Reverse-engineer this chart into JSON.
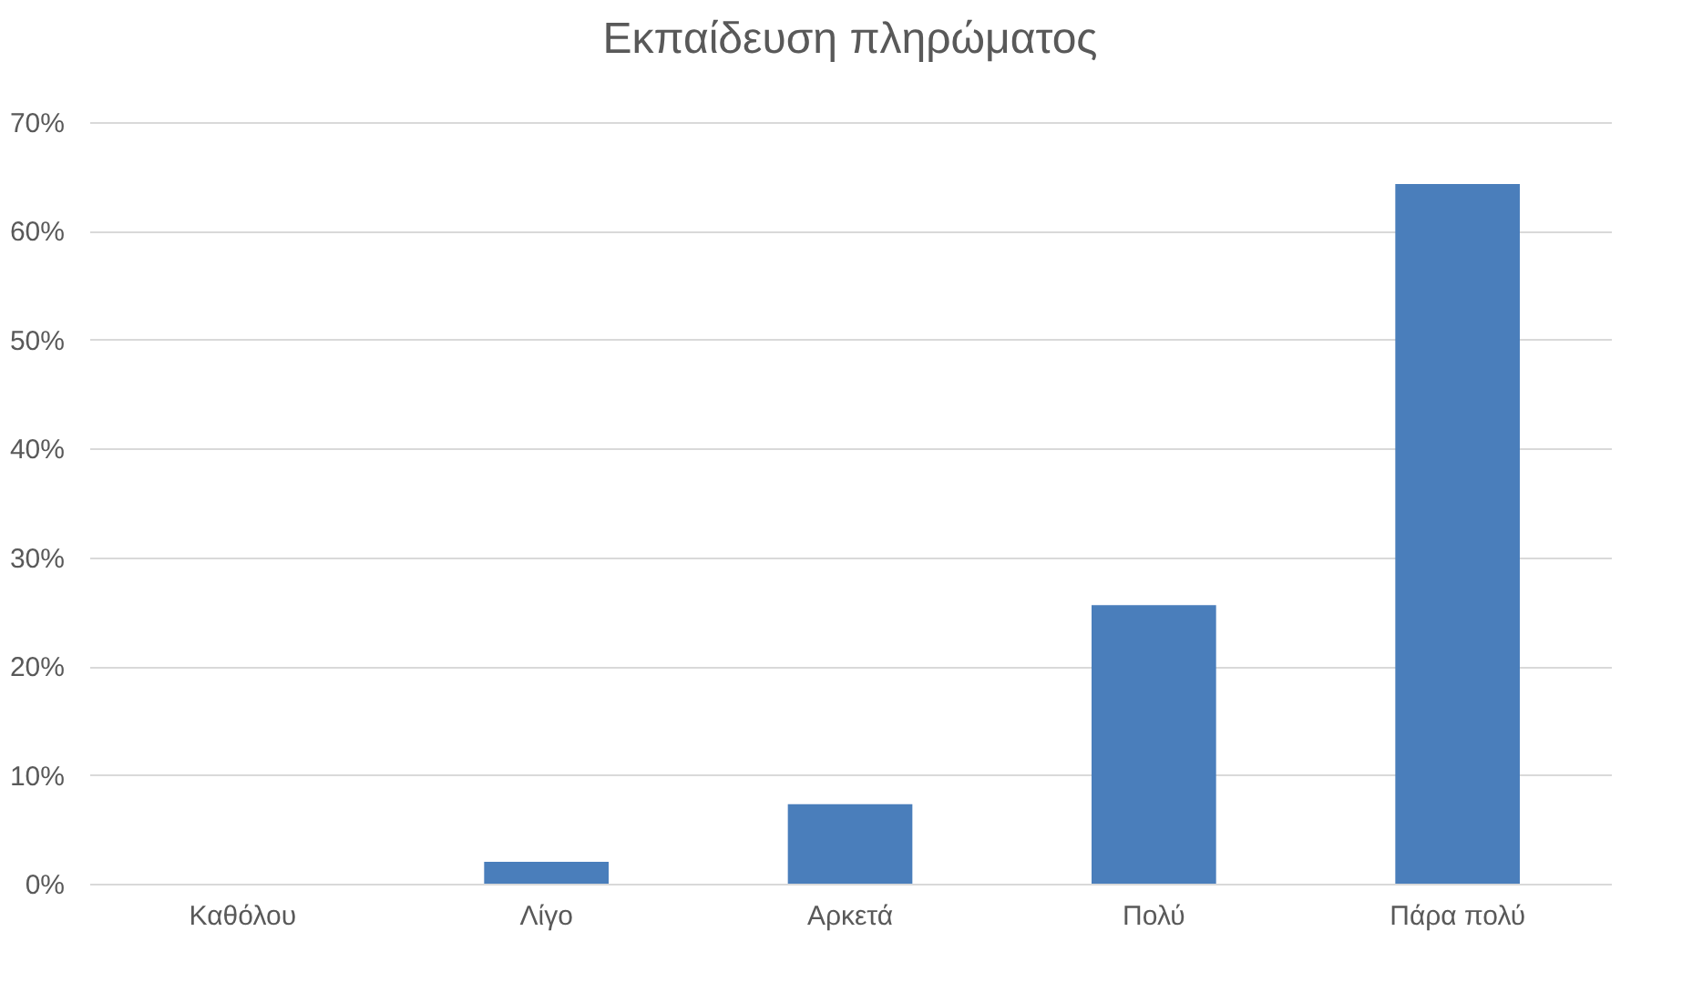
{
  "chart_data": {
    "type": "bar",
    "title": "Εκπαίδευση πληρώματος",
    "categories": [
      "Καθόλου",
      "Λίγο",
      "Αρκετά",
      "Πολύ",
      "Πάρα πολύ"
    ],
    "values": [
      0,
      2.0,
      7.3,
      25.6,
      64.3
    ],
    "color": "#4a7ebb",
    "ylim": [
      0,
      70
    ],
    "yticks": [
      {
        "value": 0,
        "label": "0%"
      },
      {
        "value": 10,
        "label": "10%"
      },
      {
        "value": 20,
        "label": "20%"
      },
      {
        "value": 30,
        "label": "30%"
      },
      {
        "value": 40,
        "label": "40%"
      },
      {
        "value": 50,
        "label": "50%"
      },
      {
        "value": 60,
        "label": "60%"
      },
      {
        "value": 70,
        "label": "70%"
      }
    ],
    "grid": true
  }
}
